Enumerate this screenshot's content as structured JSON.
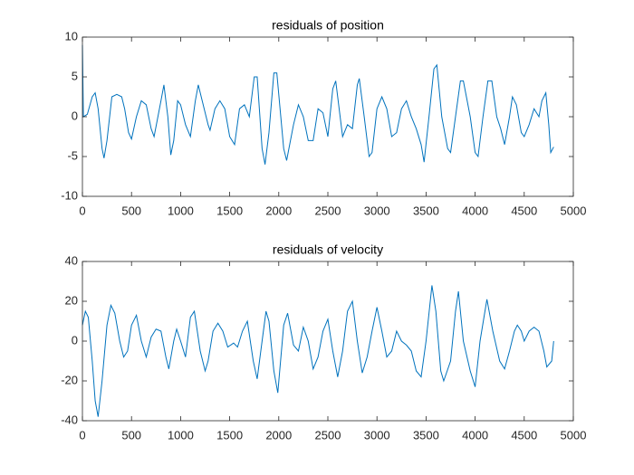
{
  "chart_data": [
    {
      "type": "line",
      "title": "residuals of position",
      "color": "#0072BD",
      "xlim": [
        0,
        5000
      ],
      "xticks": [
        0,
        500,
        1000,
        1500,
        2000,
        2500,
        3000,
        3500,
        4000,
        4500,
        5000
      ],
      "ylim": [
        -10,
        10
      ],
      "yticks": [
        -10,
        -5,
        0,
        5,
        10
      ],
      "grid": false,
      "x": [
        0,
        10,
        50,
        100,
        130,
        160,
        200,
        220,
        250,
        300,
        350,
        400,
        430,
        470,
        500,
        550,
        600,
        650,
        700,
        730,
        800,
        830,
        870,
        900,
        930,
        970,
        1000,
        1050,
        1100,
        1150,
        1180,
        1220,
        1280,
        1300,
        1350,
        1400,
        1450,
        1500,
        1550,
        1600,
        1650,
        1700,
        1750,
        1780,
        1830,
        1860,
        1900,
        1950,
        1980,
        2050,
        2080,
        2150,
        2200,
        2250,
        2300,
        2350,
        2400,
        2450,
        2500,
        2550,
        2580,
        2650,
        2700,
        2750,
        2800,
        2820,
        2870,
        2920,
        2950,
        3000,
        3050,
        3100,
        3150,
        3200,
        3250,
        3300,
        3350,
        3400,
        3450,
        3480,
        3530,
        3580,
        3610,
        3660,
        3720,
        3750,
        3800,
        3850,
        3880,
        3950,
        4000,
        4030,
        4080,
        4130,
        4170,
        4220,
        4260,
        4300,
        4350,
        4380,
        4420,
        4470,
        4500,
        4550,
        4600,
        4650,
        4680,
        4720,
        4750,
        4770,
        4800
      ],
      "values": [
        9,
        0,
        0.3,
        2.5,
        3,
        1,
        -4,
        -5.2,
        -3,
        2.5,
        2.8,
        2.5,
        1,
        -2,
        -2.8,
        0,
        2,
        1.5,
        -1.5,
        -2.5,
        2,
        4,
        0,
        -4.8,
        -3,
        2,
        1.5,
        -1,
        -2.5,
        2,
        4,
        2,
        -1,
        -1.7,
        1,
        2,
        1,
        -2.5,
        -3.5,
        1,
        1.5,
        0,
        5,
        5,
        -4,
        -6,
        -2,
        5.5,
        5.5,
        -4,
        -5.5,
        -1,
        1.5,
        0,
        -3,
        -3,
        1,
        0.5,
        -2.5,
        3.5,
        4.5,
        -2.5,
        -1,
        -1.5,
        4,
        4.8,
        0,
        -5,
        -4.5,
        1,
        2.5,
        1,
        -2.5,
        -2,
        1,
        2,
        0,
        -1.5,
        -3.5,
        -5.7,
        0,
        6,
        6.5,
        0,
        -4,
        -4.5,
        0,
        4.5,
        4.5,
        0,
        -4.5,
        -5,
        0,
        4.5,
        4.5,
        0,
        -1.5,
        -3.5,
        0,
        2.5,
        1.5,
        -2,
        -2.5,
        -1,
        1,
        0,
        2,
        3,
        -1,
        -4.5,
        -3.8
      ]
    },
    {
      "type": "line",
      "title": "residuals of velocity",
      "color": "#0072BD",
      "xlim": [
        0,
        5000
      ],
      "xticks": [
        0,
        500,
        1000,
        1500,
        2000,
        2500,
        3000,
        3500,
        4000,
        4500,
        5000
      ],
      "ylim": [
        -40,
        40
      ],
      "yticks": [
        -40,
        -20,
        0,
        20,
        40
      ],
      "grid": false,
      "x": [
        0,
        30,
        60,
        100,
        130,
        160,
        200,
        250,
        290,
        330,
        380,
        420,
        460,
        500,
        550,
        600,
        650,
        700,
        750,
        800,
        850,
        880,
        930,
        960,
        1000,
        1050,
        1100,
        1140,
        1200,
        1250,
        1280,
        1330,
        1380,
        1430,
        1480,
        1540,
        1580,
        1630,
        1680,
        1740,
        1780,
        1830,
        1870,
        1900,
        1950,
        1990,
        2050,
        2090,
        2150,
        2200,
        2250,
        2300,
        2350,
        2400,
        2450,
        2500,
        2550,
        2600,
        2650,
        2700,
        2750,
        2800,
        2850,
        2900,
        2950,
        3000,
        3050,
        3100,
        3150,
        3200,
        3250,
        3300,
        3350,
        3400,
        3450,
        3500,
        3560,
        3600,
        3650,
        3680,
        3750,
        3800,
        3830,
        3880,
        3950,
        4000,
        4050,
        4100,
        4120,
        4180,
        4250,
        4300,
        4350,
        4400,
        4430,
        4470,
        4500,
        4550,
        4600,
        4650,
        4700,
        4730,
        4780,
        4800
      ],
      "values": [
        8,
        15,
        12,
        -10,
        -30,
        -38,
        -20,
        8,
        18,
        14,
        0,
        -8,
        -5,
        8,
        13,
        0,
        -8,
        2,
        6,
        5,
        -8,
        -14,
        0,
        6,
        0,
        -8,
        12,
        15,
        -5,
        -15,
        -10,
        5,
        9,
        5,
        -3,
        -1,
        -3,
        5,
        10,
        -10,
        -19,
        0,
        15,
        10,
        -15,
        -26,
        8,
        14,
        -2,
        -5,
        7,
        0,
        -14,
        -8,
        5,
        11,
        -5,
        -18,
        -5,
        15,
        20,
        0,
        -16,
        -8,
        5,
        17,
        5,
        -8,
        -5,
        5,
        0,
        -2,
        -5,
        -15,
        -18,
        0,
        28,
        15,
        -15,
        -20,
        -10,
        15,
        25,
        0,
        -15,
        -23,
        0,
        15,
        21,
        5,
        -10,
        -14,
        -5,
        5,
        8,
        5,
        0,
        5,
        7,
        5,
        -5,
        -13,
        -10,
        0
      ]
    }
  ]
}
